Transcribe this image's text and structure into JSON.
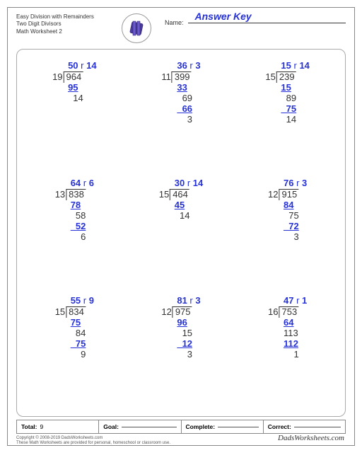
{
  "colors": {
    "ink": "#333333",
    "answer": "#2632d6",
    "border": "#888888"
  },
  "header": {
    "title1": "Easy Division with Remainders",
    "title2": "Two Digit Divisors",
    "title3": "Math Worksheet 2",
    "name_label": "Name:",
    "answer_key": "Answer Key"
  },
  "problems": [
    {
      "divisor": "19",
      "dividend": "964",
      "quotient": "50",
      "remainder": "14",
      "steps": [
        [
          "95",
          "blue",
          "ul"
        ],
        [
          "  14",
          "blk"
        ]
      ]
    },
    {
      "divisor": "11",
      "dividend": "399",
      "quotient": "36",
      "remainder": "3",
      "steps": [
        [
          "33",
          "blue",
          "ul"
        ],
        [
          "  69",
          "blk"
        ],
        [
          "  66",
          "blue",
          "ul"
        ],
        [
          "    3",
          "blk"
        ]
      ]
    },
    {
      "divisor": "15",
      "dividend": "239",
      "quotient": "15",
      "remainder": "14",
      "steps": [
        [
          "15",
          "blue",
          "ul"
        ],
        [
          "  89",
          "blk"
        ],
        [
          "  75",
          "blue",
          "ul"
        ],
        [
          "  14",
          "blk"
        ]
      ]
    },
    {
      "divisor": "13",
      "dividend": "838",
      "quotient": "64",
      "remainder": "6",
      "steps": [
        [
          "78",
          "blue",
          "ul"
        ],
        [
          "  58",
          "blk"
        ],
        [
          "  52",
          "blue",
          "ul"
        ],
        [
          "    6",
          "blk"
        ]
      ]
    },
    {
      "divisor": "15",
      "dividend": "464",
      "quotient": "30",
      "remainder": "14",
      "steps": [
        [
          "45",
          "blue",
          "ul"
        ],
        [
          "  14",
          "blk"
        ]
      ]
    },
    {
      "divisor": "12",
      "dividend": "915",
      "quotient": "76",
      "remainder": "3",
      "steps": [
        [
          "84",
          "blue",
          "ul"
        ],
        [
          "  75",
          "blk"
        ],
        [
          "  72",
          "blue",
          "ul"
        ],
        [
          "    3",
          "blk"
        ]
      ]
    },
    {
      "divisor": "15",
      "dividend": "834",
      "quotient": "55",
      "remainder": "9",
      "steps": [
        [
          "75",
          "blue",
          "ul"
        ],
        [
          "  84",
          "blk"
        ],
        [
          "  75",
          "blue",
          "ul"
        ],
        [
          "    9",
          "blk"
        ]
      ]
    },
    {
      "divisor": "12",
      "dividend": "975",
      "quotient": "81",
      "remainder": "3",
      "steps": [
        [
          "96",
          "blue",
          "ul"
        ],
        [
          "  15",
          "blk"
        ],
        [
          "  12",
          "blue",
          "ul"
        ],
        [
          "    3",
          "blk"
        ]
      ]
    },
    {
      "divisor": "16",
      "dividend": "753",
      "quotient": "47",
      "remainder": "1",
      "steps": [
        [
          "64",
          "blue",
          "ul"
        ],
        [
          "113",
          "blk"
        ],
        [
          "112",
          "blue",
          "ul"
        ],
        [
          "    1",
          "blk"
        ]
      ]
    }
  ],
  "footer": {
    "total_label": "Total:",
    "total_value": "9",
    "goal_label": "Goal:",
    "complete_label": "Complete:",
    "correct_label": "Correct:"
  },
  "copyright": {
    "line1": "Copyright © 2008-2019 DadsWorksheets.com",
    "line2": "These Math Worksheets are provided for personal, homeschool or classroom use."
  },
  "brand": "DadsWorksheets.com"
}
